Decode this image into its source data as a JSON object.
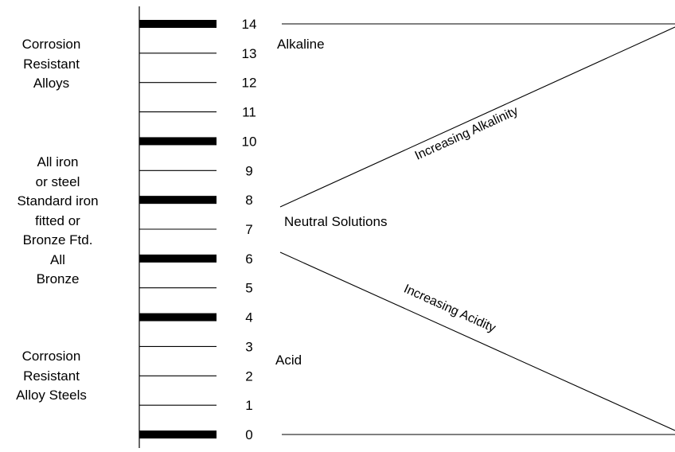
{
  "scale": {
    "ticks": [
      "0",
      "1",
      "2",
      "3",
      "4",
      "5",
      "6",
      "7",
      "8",
      "9",
      "10",
      "11",
      "12",
      "13",
      "14"
    ],
    "bold_ticks": [
      "0",
      "4",
      "6",
      "8",
      "10",
      "14"
    ]
  },
  "material_groups": [
    {
      "lines": [
        "Corrosion",
        "Resistant",
        "Alloys"
      ]
    },
    {
      "lines": [
        "All iron",
        "or steel",
        "Standard iron",
        "fitted or",
        "Bronze Ftd.",
        "All",
        "Bronze"
      ]
    },
    {
      "lines": [
        "Corrosion",
        "Resistant",
        "Alloy Steels"
      ]
    }
  ],
  "regions": {
    "alkaline": "Alkaline",
    "neutral": "Neutral Solutions",
    "acid": "Acid"
  },
  "trends": {
    "alkalinity": "Increasing Alkalinity",
    "acidity": "Increasing Acidity"
  }
}
